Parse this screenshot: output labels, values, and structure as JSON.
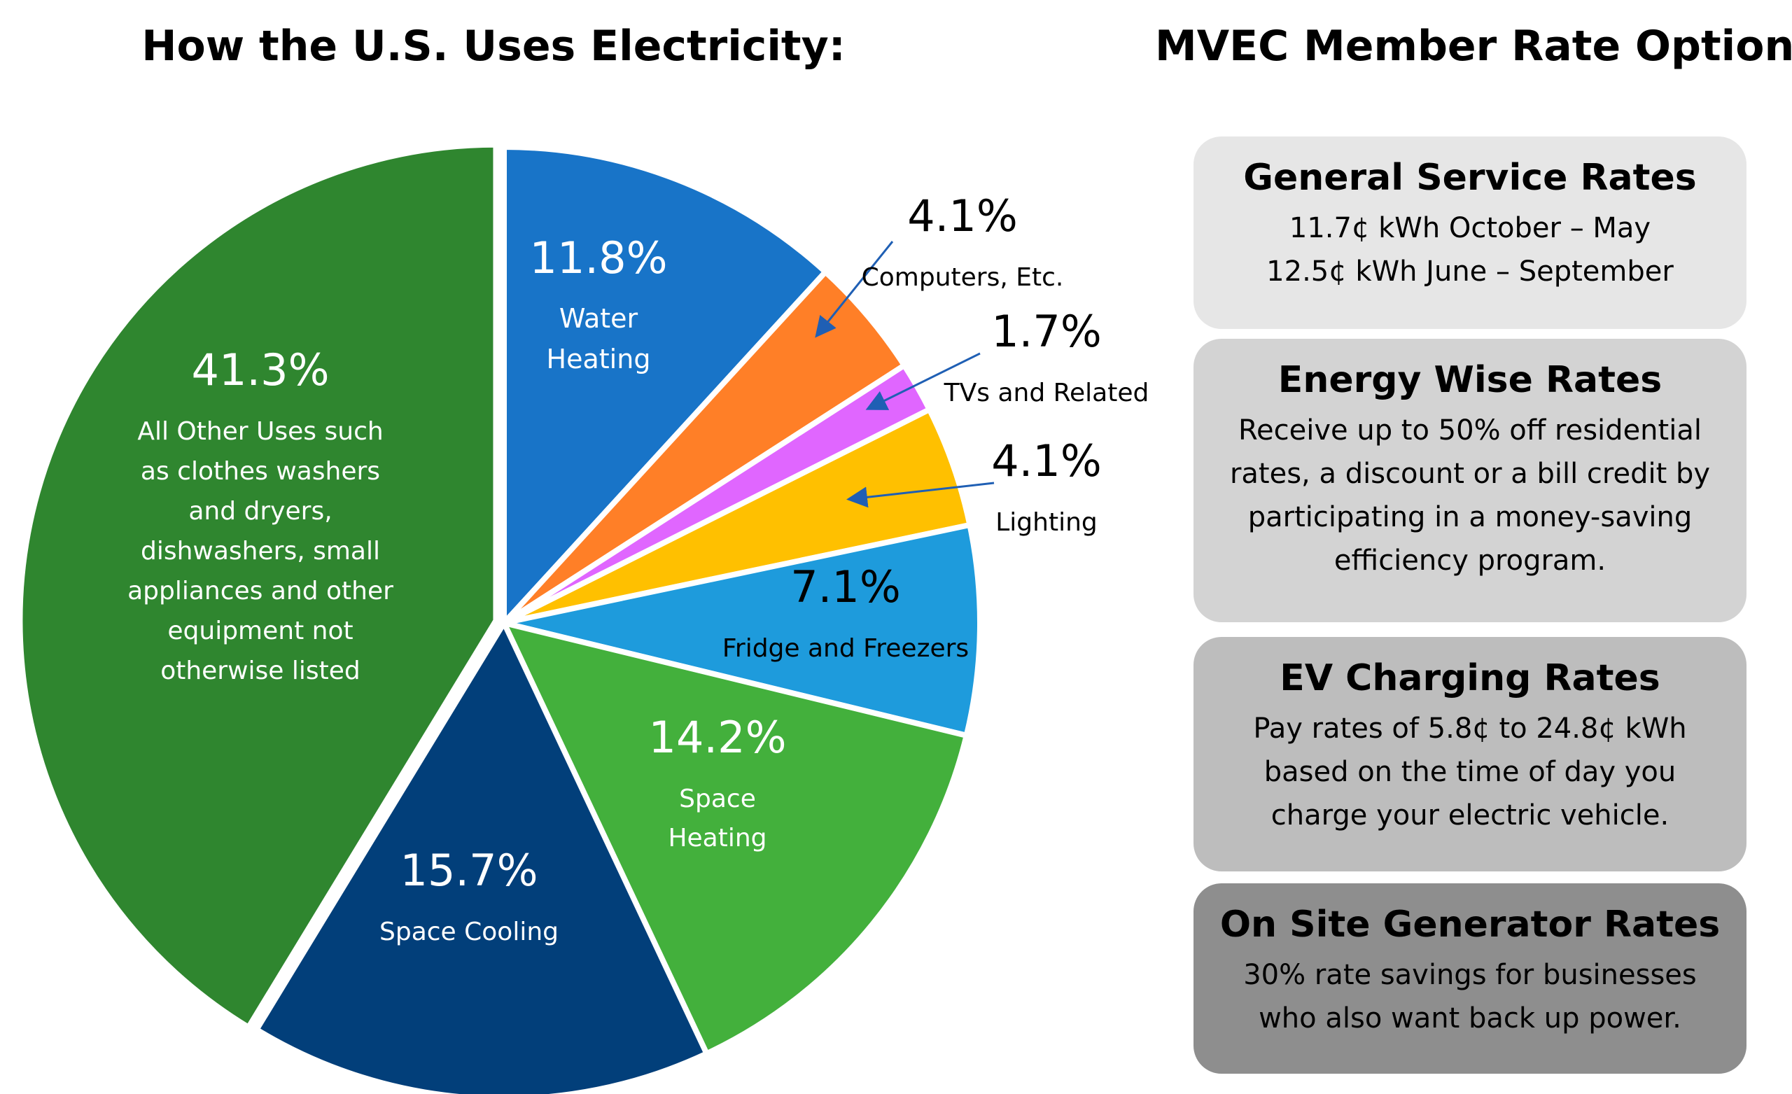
{
  "left_title": "How the U.S. Uses Electricity:",
  "right_title": "MVEC Member Rate Options:",
  "chart_data": {
    "type": "pie",
    "slices": [
      {
        "value": 11.8,
        "label": "11.8%",
        "name_lines": [
          "Water",
          "Heating"
        ],
        "color": "#1874C8",
        "label_color": "#ffffff"
      },
      {
        "value": 4.1,
        "label": "4.1%",
        "name_lines": [
          "Computers, Etc."
        ],
        "color": "#FF7F27",
        "label_color": "#000000"
      },
      {
        "value": 1.7,
        "label": "1.7%",
        "name_lines": [
          "TVs and Related"
        ],
        "color": "#E066FF",
        "label_color": "#000000"
      },
      {
        "value": 4.1,
        "label": "4.1%",
        "name_lines": [
          "Lighting"
        ],
        "color": "#FFC000",
        "label_color": "#000000"
      },
      {
        "value": 7.1,
        "label": "7.1%",
        "name_lines": [
          "Fridge and Freezers"
        ],
        "color": "#1E9BDC",
        "label_color": "#000000"
      },
      {
        "value": 14.2,
        "label": "14.2%",
        "name_lines": [
          "Space",
          "Heating"
        ],
        "color": "#43B03C",
        "label_color": "#ffffff"
      },
      {
        "value": 15.7,
        "label": "15.7%",
        "name_lines": [
          "Space Cooling"
        ],
        "color": "#023F7A",
        "label_color": "#ffffff"
      },
      {
        "value": 41.3,
        "label": "41.3%",
        "name_lines": [
          "All Other Uses such",
          "as clothes washers",
          "and dryers,",
          "dishwashers, small",
          "appliances and other",
          "equipment not",
          "otherwise listed"
        ],
        "color": "#2F862F",
        "label_color": "#ffffff"
      }
    ]
  },
  "rate_options": [
    {
      "title": "General Service Rates",
      "lines": [
        "11.7¢ kWh October – May",
        "12.5¢ kWh June – September"
      ],
      "background": "#E6E6E6"
    },
    {
      "title": "Energy Wise Rates",
      "lines": [
        "Receive up to 50% off residential",
        "rates, a discount or a bill credit by",
        "participating in a money-saving",
        "efficiency program."
      ],
      "background": "#D3D3D3"
    },
    {
      "title": "EV Charging Rates",
      "lines": [
        "Pay rates of 5.8¢ to 24.8¢ kWh",
        "based on the time of day you",
        "charge your electric vehicle."
      ],
      "background": "#BDBDBD"
    },
    {
      "title": "On Site Generator Rates",
      "lines": [
        "30% rate savings for businesses",
        "who also want back up power."
      ],
      "background": "#8E8E8E"
    }
  ]
}
